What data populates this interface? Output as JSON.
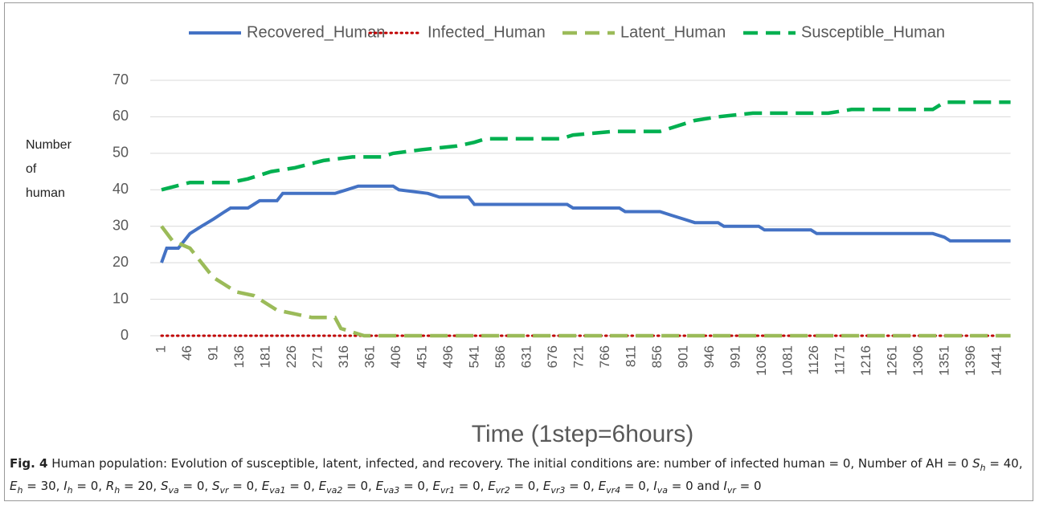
{
  "chart_data": {
    "type": "line",
    "legend": "top",
    "grid": true,
    "y_label_lines": [
      "Number",
      "of",
      "human"
    ],
    "x_label": "Time (1step=6hours)",
    "xlim": [
      1,
      1464
    ],
    "xticks": [
      1,
      46,
      91,
      136,
      181,
      226,
      271,
      316,
      361,
      406,
      451,
      496,
      541,
      586,
      631,
      676,
      721,
      766,
      811,
      856,
      901,
      946,
      991,
      1036,
      1081,
      1126,
      1171,
      1216,
      1261,
      1306,
      1351,
      1396,
      1441
    ],
    "ylim": [
      0,
      70
    ],
    "yticks": [
      0,
      10,
      20,
      30,
      40,
      50,
      60,
      70
    ],
    "series": [
      {
        "name": "Recovered_Human",
        "color": "#4472c4",
        "style": "solid",
        "x": [
          1,
          10,
          30,
          40,
          50,
          70,
          91,
          110,
          120,
          150,
          160,
          170,
          200,
          210,
          260,
          300,
          320,
          340,
          400,
          410,
          460,
          480,
          530,
          540,
          700,
          710,
          790,
          800,
          860,
          880,
          900,
          920,
          960,
          970,
          1030,
          1040,
          1120,
          1130,
          1330,
          1350,
          1360,
          1464
        ],
        "values": [
          20,
          24,
          24,
          26,
          28,
          30,
          32,
          34,
          35,
          35,
          36,
          37,
          37,
          39,
          39,
          39,
          40,
          41,
          41,
          40,
          39,
          38,
          38,
          36,
          36,
          35,
          35,
          34,
          34,
          33,
          32,
          31,
          31,
          30,
          30,
          29,
          29,
          28,
          28,
          27,
          26,
          26
        ]
      },
      {
        "name": "Infected_Human",
        "color": "#c00000",
        "style": "dotted",
        "x": [
          1,
          1464
        ],
        "values": [
          0,
          0
        ]
      },
      {
        "name": "Latent_Human",
        "color": "#9bbb59",
        "style": "dashed",
        "x": [
          1,
          20,
          50,
          70,
          90,
          110,
          130,
          160,
          180,
          200,
          230,
          260,
          300,
          310,
          330,
          350,
          1464
        ],
        "values": [
          30,
          26,
          24,
          20,
          16,
          14,
          12,
          11,
          9,
          7,
          6,
          5,
          5,
          2,
          1,
          0,
          0
        ]
      },
      {
        "name": "Susceptible_Human",
        "color": "#00b050",
        "style": "dashed",
        "x": [
          1,
          50,
          120,
          150,
          190,
          230,
          280,
          330,
          380,
          400,
          450,
          510,
          540,
          560,
          690,
          710,
          780,
          860,
          880,
          920,
          960,
          1020,
          1150,
          1190,
          1330,
          1350,
          1464
        ],
        "values": [
          40,
          42,
          42,
          43,
          45,
          46,
          48,
          49,
          49,
          50,
          51,
          52,
          53,
          54,
          54,
          55,
          56,
          56,
          57,
          59,
          60,
          61,
          61,
          62,
          62,
          64,
          64
        ]
      }
    ]
  },
  "caption": {
    "label": "Fig. 4",
    "pieces": [
      [
        "Human population: Evolution of susceptible, latent, infected, and recovery. The initial conditions are: number of infected human = 0, Number of AH = 0 ",
        ""
      ],
      [
        "S",
        "i"
      ],
      [
        "h",
        "sub"
      ],
      [
        " = 40, ",
        ""
      ],
      [
        "E",
        "i"
      ],
      [
        "h",
        "sub"
      ],
      [
        " = 30, ",
        ""
      ],
      [
        "I",
        "i"
      ],
      [
        "h",
        "sub"
      ],
      [
        " = 0, ",
        ""
      ],
      [
        "R",
        "i"
      ],
      [
        "h",
        "sub"
      ],
      [
        " = 20, ",
        ""
      ],
      [
        "S",
        "i"
      ],
      [
        "va",
        "sub"
      ],
      [
        " = 0, ",
        ""
      ],
      [
        "S",
        "i"
      ],
      [
        "vr",
        "sub"
      ],
      [
        " = 0, ",
        ""
      ],
      [
        "E",
        "i"
      ],
      [
        "va1",
        "sub"
      ],
      [
        " = 0, ",
        ""
      ],
      [
        "E",
        "i"
      ],
      [
        "va2",
        "sub"
      ],
      [
        " = 0, ",
        ""
      ],
      [
        "E",
        "i"
      ],
      [
        "va3",
        "sub"
      ],
      [
        " = 0, ",
        ""
      ],
      [
        "E",
        "i"
      ],
      [
        "vr1",
        "sub"
      ],
      [
        " = 0, ",
        ""
      ],
      [
        "E",
        "i"
      ],
      [
        "vr2",
        "sub"
      ],
      [
        " = 0, ",
        ""
      ],
      [
        "E",
        "i"
      ],
      [
        "vr3",
        "sub"
      ],
      [
        " = 0, ",
        ""
      ],
      [
        "E",
        "i"
      ],
      [
        "vr4",
        "sub"
      ],
      [
        " = 0, ",
        ""
      ],
      [
        "I",
        "i"
      ],
      [
        "va",
        "sub"
      ],
      [
        " = 0 and ",
        ""
      ],
      [
        "I",
        "i"
      ],
      [
        "vr",
        "sub"
      ],
      [
        " = 0",
        ""
      ]
    ]
  }
}
